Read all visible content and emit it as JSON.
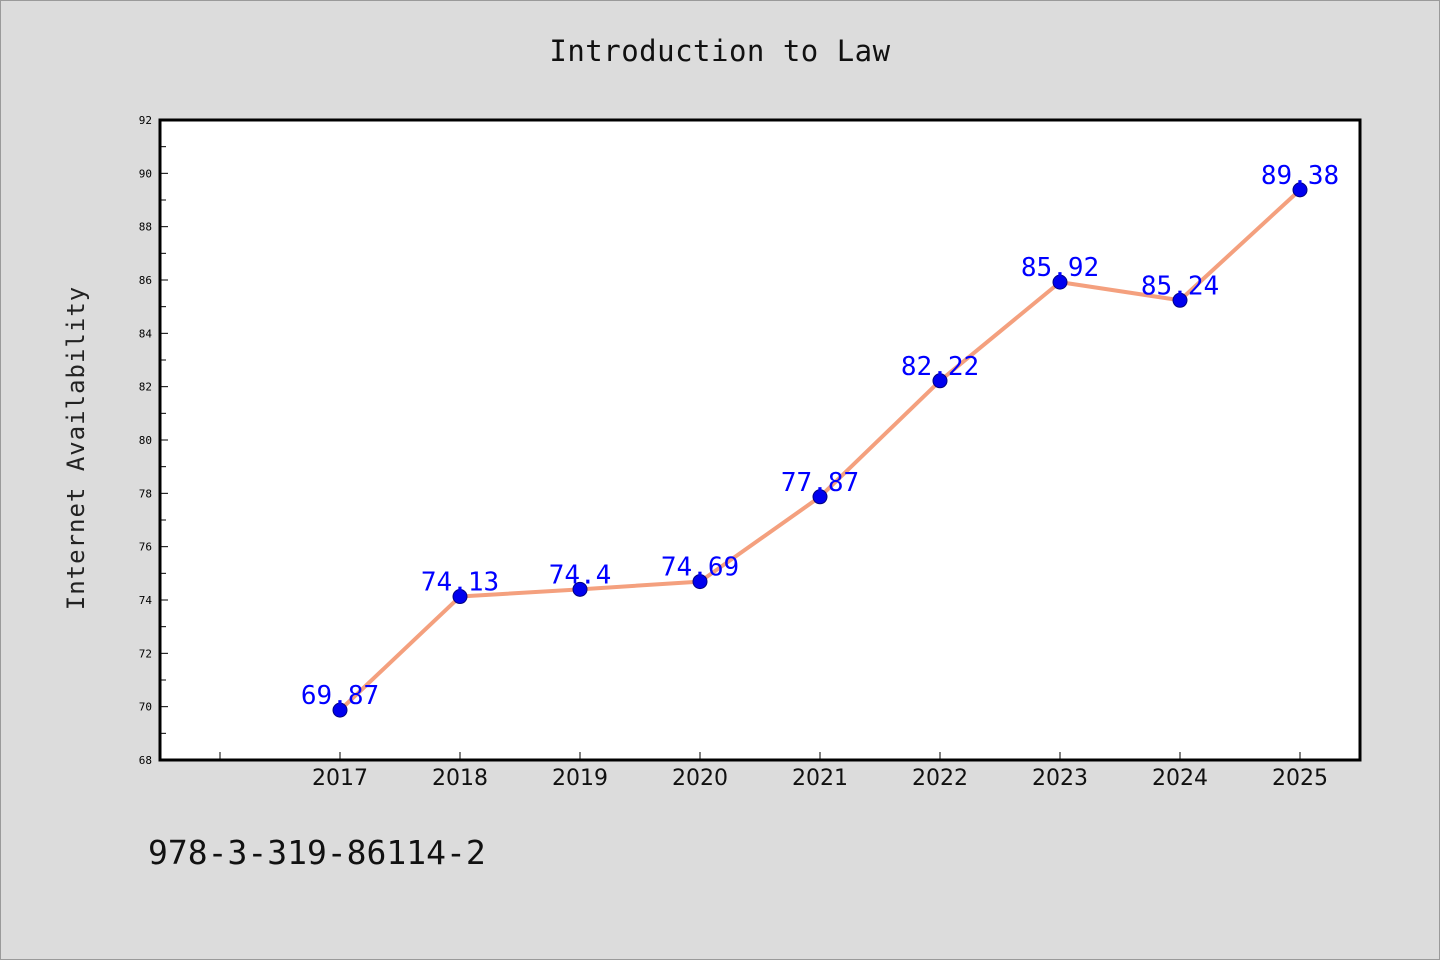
{
  "chart_data": {
    "type": "line",
    "title": "Introduction to Law",
    "xlabel": "",
    "ylabel": "Internet Availability",
    "categories": [
      "2017",
      "2018",
      "2019",
      "2020",
      "2021",
      "2022",
      "2023",
      "2024",
      "2025"
    ],
    "values": [
      69.87,
      74.13,
      74.4,
      74.69,
      77.87,
      82.22,
      85.92,
      85.24,
      89.38
    ],
    "data_labels": [
      "69.87",
      "74.13",
      "74.4",
      "74.69",
      "77.87",
      "82.22",
      "85.92",
      "85.24",
      "89.38"
    ],
    "ylim": [
      68,
      92
    ],
    "yticks": [
      "68",
      "70",
      "72",
      "74",
      "76",
      "78",
      "80",
      "82",
      "84",
      "86",
      "88",
      "90",
      "92"
    ],
    "grid": false,
    "legend": "none",
    "colors": {
      "line": "#f4a07e",
      "marker": "#0000ee",
      "marker_edge": "#000080",
      "data_label": "#0000ff",
      "background": "#dcdcdc",
      "plot_background": "#ffffff"
    }
  },
  "footer": {
    "code": "978-3-319-86114-2"
  }
}
